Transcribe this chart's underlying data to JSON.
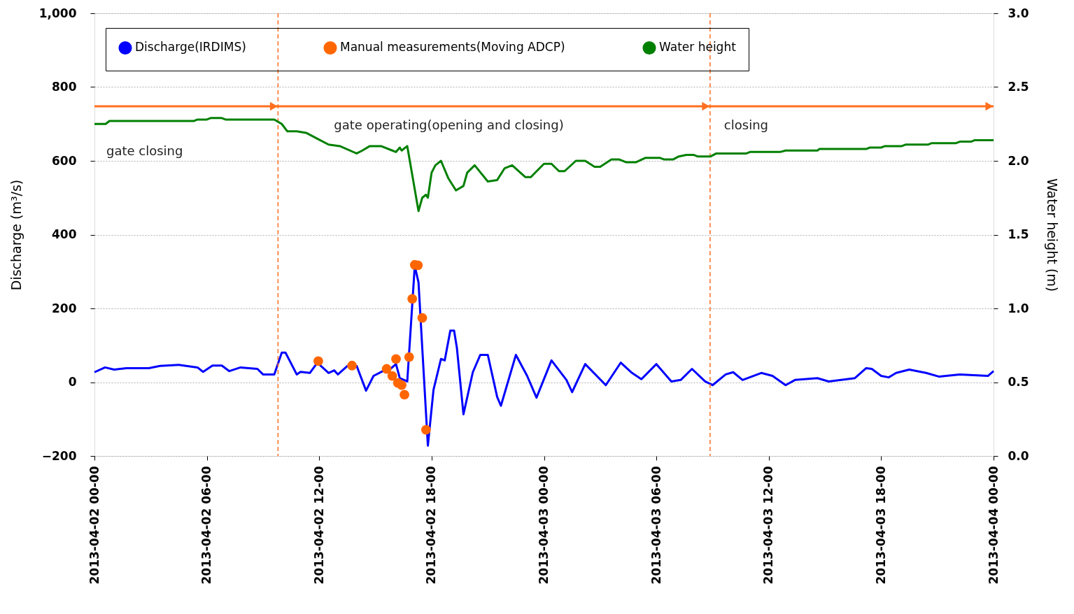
{
  "chart_data": {
    "type": "line",
    "ylabel": "Discharge (m³/s)",
    "y2label": "Water height (m)",
    "xlim": [
      "2013-04-02T00:00",
      "2013-04-04T00:00"
    ],
    "xticks": [
      {
        "value": "2013-04-02T00:00",
        "label": "2013-04-02 00-00"
      },
      {
        "value": "2013-04-02T06:00",
        "label": "2013-04-02 06-00"
      },
      {
        "value": "2013-04-02T12:00",
        "label": "2013-04-02 12-00"
      },
      {
        "value": "2013-04-02T18:00",
        "label": "2013-04-02 18-00"
      },
      {
        "value": "2013-04-03T00:00",
        "label": "2013-04-03 00-00"
      },
      {
        "value": "2013-04-03T06:00",
        "label": "2013-04-03 06-00"
      },
      {
        "value": "2013-04-03T12:00",
        "label": "2013-04-03 12-00"
      },
      {
        "value": "2013-04-03T18:00",
        "label": "2013-04-03 18-00"
      },
      {
        "value": "2013-04-04T00:00",
        "label": "2013-04-04 00-00"
      }
    ],
    "ylim": [
      -200,
      1000
    ],
    "yticks": [
      -200,
      0,
      200,
      400,
      600,
      800,
      {
        "value": 1000,
        "label": "1,000"
      }
    ],
    "y2lim": [
      0,
      3
    ],
    "y2ticks": [
      {
        "value": 0,
        "label": "0.0"
      },
      0.5,
      {
        "value": 1,
        "label": "1.0"
      },
      1.5,
      {
        "value": 2,
        "label": "2.0"
      },
      2.5,
      {
        "value": 3,
        "label": "3.0"
      }
    ],
    "grid": "y",
    "legend": "top",
    "line_style": "solid",
    "series": [
      {
        "name": "Discharge(IRDIMS)",
        "color": "#0000ff",
        "x": [
          "2013-04-02T00:00",
          "2013-04-02T00:34",
          "2013-04-02T01:03",
          "2013-04-02T01:42",
          "2013-04-02T02:54",
          "2013-04-02T03:30",
          "2013-04-02T04:30",
          "2013-04-02T05:30",
          "2013-04-02T05:48",
          "2013-04-02T06:18",
          "2013-04-02T06:48",
          "2013-04-02T07:12",
          "2013-04-02T07:48",
          "2013-04-02T08:42",
          "2013-04-02T09:00",
          "2013-04-02T09:36",
          "2013-04-02T10:00",
          "2013-04-02T10:12",
          "2013-04-02T10:48",
          "2013-04-02T11:00",
          "2013-04-02T11:30",
          "2013-04-02T11:54",
          "2013-04-02T12:30",
          "2013-04-02T12:48",
          "2013-04-02T13:00",
          "2013-04-02T13:30",
          "2013-04-02T14:00",
          "2013-04-02T14:30",
          "2013-04-02T14:54",
          "2013-04-02T15:24",
          "2013-04-02T15:48",
          "2013-04-02T16:06",
          "2013-04-02T16:18",
          "2013-04-02T16:42",
          "2013-04-02T17:06",
          "2013-04-02T17:18",
          "2013-04-02T17:48",
          "2013-04-02T18:06",
          "2013-04-02T18:30",
          "2013-04-02T18:42",
          "2013-04-02T19:00",
          "2013-04-02T19:12",
          "2013-04-02T19:21",
          "2013-04-02T19:42",
          "2013-04-02T20:12",
          "2013-04-02T20:36",
          "2013-04-02T21:00",
          "2013-04-02T21:30",
          "2013-04-02T21:42",
          "2013-04-02T22:30",
          "2013-04-02T23:06",
          "2013-04-02T23:36",
          "2013-04-03T00:24",
          "2013-04-03T01:12",
          "2013-04-03T01:30",
          "2013-04-03T02:12",
          "2013-04-03T03:18",
          "2013-04-03T04:06",
          "2013-04-03T04:42",
          "2013-04-03T05:12",
          "2013-04-03T06:00",
          "2013-04-03T06:48",
          "2013-04-03T07:18",
          "2013-04-03T07:54",
          "2013-04-03T08:36",
          "2013-04-03T09:00",
          "2013-04-03T09:42",
          "2013-04-03T10:06",
          "2013-04-03T10:36",
          "2013-04-03T11:36",
          "2013-04-03T12:12",
          "2013-04-03T12:54",
          "2013-04-03T13:24",
          "2013-04-03T14:36",
          "2013-04-03T15:12",
          "2013-04-03T16:36",
          "2013-04-03T17:12",
          "2013-04-03T17:30",
          "2013-04-03T18:00",
          "2013-04-03T18:24",
          "2013-04-03T18:48",
          "2013-04-03T19:30",
          "2013-04-03T20:24",
          "2013-04-03T21:06",
          "2013-04-03T22:12",
          "2013-04-03T23:42",
          "2013-04-04T00:00"
        ],
        "values": [
          27,
          40,
          34,
          38,
          38,
          44,
          47,
          40,
          28,
          45,
          45,
          30,
          40,
          36,
          21,
          21,
          80,
          80,
          21,
          28,
          25,
          53,
          25,
          32,
          21,
          44,
          44,
          -23,
          17,
          30,
          36,
          49,
          11,
          2,
          315,
          271,
          -172,
          -21,
          63,
          59,
          140,
          140,
          93,
          -87,
          27,
          74,
          74,
          -40,
          -64,
          74,
          17,
          -42,
          59,
          6,
          -27,
          49,
          -8,
          53,
          25,
          8,
          49,
          2,
          6,
          36,
          2,
          -8,
          21,
          27,
          6,
          25,
          17,
          -8,
          6,
          11,
          2,
          11,
          38,
          36,
          17,
          13,
          25,
          34,
          25,
          15,
          21,
          17,
          30
        ]
      },
      {
        "name": "Manual measurements(Moving ADCP)",
        "type": "scatter",
        "marker": "circle",
        "color": "#ff6600",
        "x": [
          "2013-04-02T11:57",
          "2013-04-02T13:45",
          "2013-04-02T15:36",
          "2013-04-02T15:54",
          "2013-04-02T16:06",
          "2013-04-02T16:12",
          "2013-04-02T16:24",
          "2013-04-02T16:33",
          "2013-04-02T16:48",
          "2013-04-02T16:58",
          "2013-04-02T17:06",
          "2013-04-02T17:16",
          "2013-04-02T17:30",
          "2013-04-02T17:42"
        ],
        "values": [
          57,
          45,
          36,
          17,
          63,
          -2,
          -8,
          -34,
          68,
          226,
          318,
          317,
          174,
          -129
        ]
      },
      {
        "name": "Water height",
        "axis": "y2",
        "color": "#008000",
        "x": [
          "2013-04-02T00:00",
          "2013-04-02T00:36",
          "2013-04-02T00:48",
          "2013-04-02T05:18",
          "2013-04-02T05:30",
          "2013-04-02T06:00",
          "2013-04-02T06:12",
          "2013-04-02T06:48",
          "2013-04-02T07:00",
          "2013-04-02T09:36",
          "2013-04-02T10:00",
          "2013-04-02T10:18",
          "2013-04-02T10:48",
          "2013-04-02T11:18",
          "2013-04-02T11:54",
          "2013-04-02T12:30",
          "2013-04-02T13:06",
          "2013-04-02T14:00",
          "2013-04-02T14:18",
          "2013-04-02T14:42",
          "2013-04-02T15:18",
          "2013-04-02T15:54",
          "2013-04-02T16:06",
          "2013-04-02T16:18",
          "2013-04-02T16:24",
          "2013-04-02T16:42",
          "2013-04-02T17:18",
          "2013-04-02T17:30",
          "2013-04-02T17:42",
          "2013-04-02T17:48",
          "2013-04-02T18:00",
          "2013-04-02T18:12",
          "2013-04-02T18:30",
          "2013-04-02T18:54",
          "2013-04-02T19:18",
          "2013-04-02T19:42",
          "2013-04-02T19:54",
          "2013-04-02T20:18",
          "2013-04-02T21:00",
          "2013-04-02T21:30",
          "2013-04-02T21:54",
          "2013-04-02T22:18",
          "2013-04-02T23:00",
          "2013-04-02T23:18",
          "2013-04-03T00:00",
          "2013-04-03T00:24",
          "2013-04-03T00:48",
          "2013-04-03T01:06",
          "2013-04-03T01:42",
          "2013-04-03T02:12",
          "2013-04-03T02:42",
          "2013-04-03T03:00",
          "2013-04-03T03:36",
          "2013-04-03T04:00",
          "2013-04-03T04:24",
          "2013-04-03T04:54",
          "2013-04-03T05:24",
          "2013-04-03T06:12",
          "2013-04-03T06:24",
          "2013-04-03T06:54",
          "2013-04-03T07:12",
          "2013-04-03T07:36",
          "2013-04-03T08:00",
          "2013-04-03T08:12",
          "2013-04-03T08:54",
          "2013-04-03T09:12",
          "2013-04-03T10:48",
          "2013-04-03T11:00",
          "2013-04-03T12:36",
          "2013-04-03T12:54",
          "2013-04-03T14:36",
          "2013-04-03T14:42",
          "2013-04-03T17:12",
          "2013-04-03T17:24",
          "2013-04-03T18:00",
          "2013-04-03T18:12",
          "2013-04-03T19:06",
          "2013-04-03T19:18",
          "2013-04-03T20:30",
          "2013-04-03T20:42",
          "2013-04-03T22:00",
          "2013-04-03T22:12",
          "2013-04-03T22:48",
          "2013-04-03T23:00",
          "2013-04-04T00:00"
        ],
        "values": [
          2.25,
          2.25,
          2.27,
          2.27,
          2.28,
          2.28,
          2.29,
          2.29,
          2.28,
          2.28,
          2.25,
          2.2,
          2.2,
          2.19,
          2.15,
          2.11,
          2.1,
          2.05,
          2.07,
          2.1,
          2.1,
          2.07,
          2.06,
          2.09,
          2.07,
          2.1,
          1.66,
          1.75,
          1.77,
          1.75,
          1.92,
          1.97,
          2.0,
          1.88,
          1.8,
          1.83,
          1.92,
          1.97,
          1.86,
          1.87,
          1.95,
          1.97,
          1.89,
          1.89,
          1.98,
          1.98,
          1.93,
          1.93,
          2.0,
          2.0,
          1.96,
          1.96,
          2.01,
          2.01,
          1.99,
          1.99,
          2.02,
          2.02,
          2.01,
          2.01,
          2.03,
          2.04,
          2.04,
          2.03,
          2.03,
          2.05,
          2.05,
          2.06,
          2.06,
          2.07,
          2.07,
          2.08,
          2.08,
          2.09,
          2.09,
          2.1,
          2.1,
          2.11,
          2.11,
          2.12,
          2.12,
          2.13,
          2.13,
          2.14,
          2.14
        ]
      }
    ],
    "ref_lines": [
      {
        "axis": "x",
        "value": "2013-04-02T09:48",
        "color": "#ff6f1f",
        "line_style": "dashed"
      },
      {
        "axis": "x",
        "value": "2013-04-03T08:52",
        "color": "#ff6f1f",
        "line_style": "dashed"
      }
    ],
    "annotations": [
      "gate closing",
      "gate operating(opening and closing)",
      "closing"
    ]
  }
}
